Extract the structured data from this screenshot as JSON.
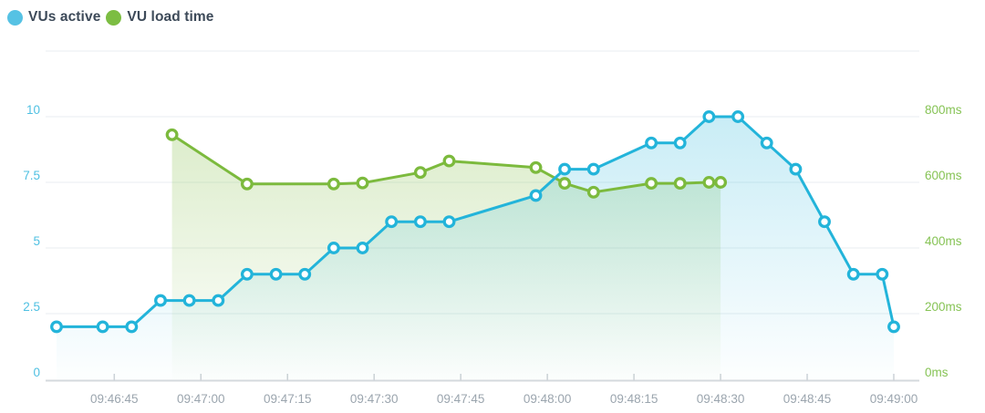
{
  "colors": {
    "background": "#ffffff",
    "legend_text": "#3d4a59",
    "grid_line": "#f0f4f5",
    "axis_line": "#d4d9dd",
    "tick_mark": "#cdd2d7",
    "x_axis_label": "#9ba5ae",
    "left_axis_label": "#4fc0e2",
    "right_axis_label": "#86c355",
    "vus_blue": "#23b4da",
    "vus_legend_dot": "#56c2e4",
    "load_green": "#7cba3d",
    "load_legend_dot": "#7cbd42"
  },
  "legend": {
    "items": [
      {
        "label": "VUs active",
        "color": "#56c2e4"
      },
      {
        "label": "VU load time",
        "color": "#7cbd42"
      }
    ]
  },
  "chart_data": {
    "type": "line",
    "title": "",
    "grid": true,
    "legend_position": "top-left",
    "x_axis": {
      "unit": "time",
      "ticks": [
        {
          "label": "09:46:45",
          "t": 10
        },
        {
          "label": "09:47:00",
          "t": 25
        },
        {
          "label": "09:47:15",
          "t": 40
        },
        {
          "label": "09:47:30",
          "t": 55
        },
        {
          "label": "09:47:45",
          "t": 70
        },
        {
          "label": "09:48:00",
          "t": 85
        },
        {
          "label": "09:48:15",
          "t": 100
        },
        {
          "label": "09:48:30",
          "t": 115
        },
        {
          "label": "09:48:45",
          "t": 130
        },
        {
          "label": "09:49:00",
          "t": 145
        }
      ]
    },
    "y_axis_left": {
      "name": "VUs active",
      "max": 12.5,
      "label_color": "#4fc0e2",
      "grid_values": [
        2.5,
        5,
        7.5,
        10,
        12.5
      ],
      "ticks": [
        {
          "label": "0",
          "value": 0
        },
        {
          "label": "2.5",
          "value": 2.5
        },
        {
          "label": "5",
          "value": 5
        },
        {
          "label": "7.5",
          "value": 7.5
        },
        {
          "label": "10",
          "value": 10
        }
      ]
    },
    "y_axis_right": {
      "name": "VU load time",
      "max": 1000,
      "label_color": "#86c355",
      "ticks": [
        {
          "label": "0ms",
          "value": 0
        },
        {
          "label": "200ms",
          "value": 200
        },
        {
          "label": "400ms",
          "value": 400
        },
        {
          "label": "600ms",
          "value": 600
        },
        {
          "label": "800ms",
          "value": 800
        }
      ]
    },
    "series": [
      {
        "name": "VU load time",
        "axis": "right",
        "color": "#7cba3d",
        "fill_opacity_top": 0.3,
        "points": [
          {
            "time": "09:46:55",
            "t": 20,
            "value": 745
          },
          {
            "time": "09:47:08",
            "t": 33,
            "value": 595
          },
          {
            "time": "09:47:23",
            "t": 48,
            "value": 595
          },
          {
            "time": "09:47:28",
            "t": 53,
            "value": 598
          },
          {
            "time": "09:47:38",
            "t": 63,
            "value": 630
          },
          {
            "time": "09:47:43",
            "t": 68,
            "value": 665
          },
          {
            "time": "09:47:58",
            "t": 83,
            "value": 645
          },
          {
            "time": "09:48:03",
            "t": 88,
            "value": 597
          },
          {
            "time": "09:48:08",
            "t": 93,
            "value": 570
          },
          {
            "time": "09:48:18",
            "t": 103,
            "value": 597
          },
          {
            "time": "09:48:23",
            "t": 108,
            "value": 597
          },
          {
            "time": "09:48:28",
            "t": 113,
            "value": 600
          },
          {
            "time": "09:48:30",
            "t": 115,
            "value": 600
          }
        ]
      },
      {
        "name": "VUs active",
        "axis": "left",
        "color": "#23b4da",
        "fill_opacity_top": 0.26,
        "points": [
          {
            "time": "09:46:35",
            "t": 0,
            "value": 2
          },
          {
            "time": "09:46:43",
            "t": 8,
            "value": 2
          },
          {
            "time": "09:46:48",
            "t": 13,
            "value": 2
          },
          {
            "time": "09:46:53",
            "t": 18,
            "value": 3
          },
          {
            "time": "09:46:58",
            "t": 23,
            "value": 3
          },
          {
            "time": "09:47:03",
            "t": 28,
            "value": 3
          },
          {
            "time": "09:47:08",
            "t": 33,
            "value": 4
          },
          {
            "time": "09:47:13",
            "t": 38,
            "value": 4
          },
          {
            "time": "09:47:18",
            "t": 43,
            "value": 4
          },
          {
            "time": "09:47:23",
            "t": 48,
            "value": 5
          },
          {
            "time": "09:47:28",
            "t": 53,
            "value": 5
          },
          {
            "time": "09:47:33",
            "t": 58,
            "value": 6
          },
          {
            "time": "09:47:38",
            "t": 63,
            "value": 6
          },
          {
            "time": "09:47:43",
            "t": 68,
            "value": 6
          },
          {
            "time": "09:47:58",
            "t": 83,
            "value": 7
          },
          {
            "time": "09:48:03",
            "t": 88,
            "value": 8
          },
          {
            "time": "09:48:08",
            "t": 93,
            "value": 8
          },
          {
            "time": "09:48:18",
            "t": 103,
            "value": 9
          },
          {
            "time": "09:48:23",
            "t": 108,
            "value": 9
          },
          {
            "time": "09:48:28",
            "t": 113,
            "value": 10
          },
          {
            "time": "09:48:33",
            "t": 118,
            "value": 10
          },
          {
            "time": "09:48:38",
            "t": 123,
            "value": 9
          },
          {
            "time": "09:48:43",
            "t": 128,
            "value": 8
          },
          {
            "time": "09:48:48",
            "t": 133,
            "value": 6
          },
          {
            "time": "09:48:53",
            "t": 138,
            "value": 4
          },
          {
            "time": "09:48:58",
            "t": 143,
            "value": 4
          },
          {
            "time": "09:49:00",
            "t": 145,
            "value": 2
          }
        ]
      }
    ]
  }
}
